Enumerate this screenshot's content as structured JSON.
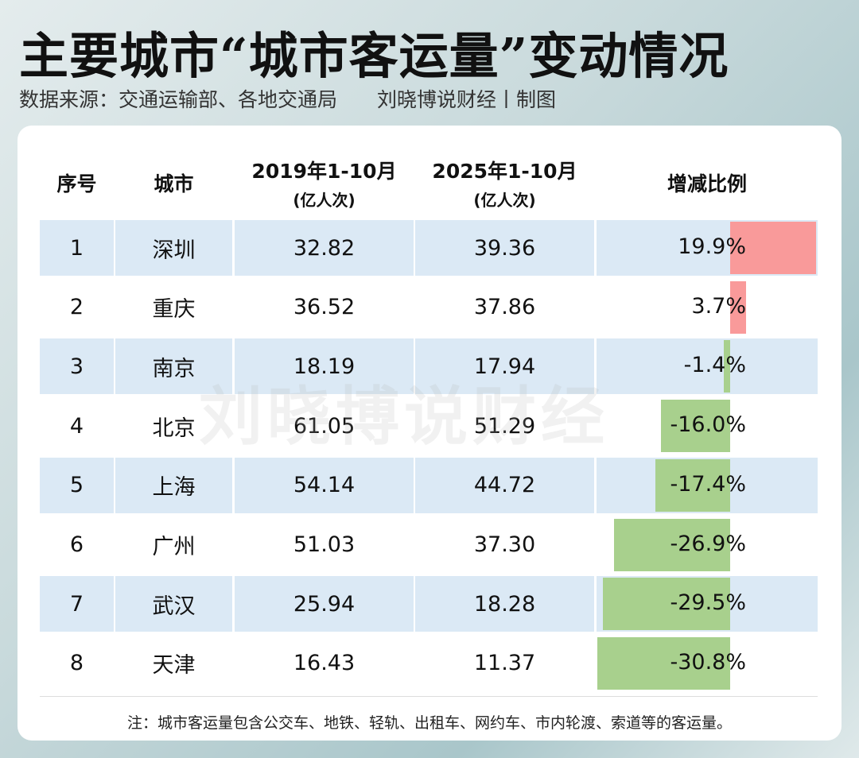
{
  "title": "主要城市“城市客运量”变动情况",
  "source": "数据来源：交通运输部、各地交通局",
  "maker": "刘晓博说财经丨制图",
  "watermark": "刘晓博说财经",
  "colors": {
    "increase": "#f99a9a",
    "decrease": "#a8d08d",
    "row_shade": "#dbe9f5"
  },
  "chart_data": {
    "type": "table",
    "columns": [
      {
        "label": "序号",
        "unit": ""
      },
      {
        "label": "城市",
        "unit": ""
      },
      {
        "label": "2019年1-10月",
        "unit": "(亿人次)"
      },
      {
        "label": "2025年1-10月",
        "unit": "(亿人次)"
      },
      {
        "label": "增减比例",
        "unit": ""
      }
    ],
    "rows": [
      {
        "rank": "1",
        "city": "深圳",
        "y2019": "32.82",
        "y2025": "39.36",
        "change": 19.9,
        "change_label": "19.9%"
      },
      {
        "rank": "2",
        "city": "重庆",
        "y2019": "36.52",
        "y2025": "37.86",
        "change": 3.7,
        "change_label": "3.7%"
      },
      {
        "rank": "3",
        "city": "南京",
        "y2019": "18.19",
        "y2025": "17.94",
        "change": -1.4,
        "change_label": "-1.4%"
      },
      {
        "rank": "4",
        "city": "北京",
        "y2019": "61.05",
        "y2025": "51.29",
        "change": -16.0,
        "change_label": "-16.0%"
      },
      {
        "rank": "5",
        "city": "上海",
        "y2019": "54.14",
        "y2025": "44.72",
        "change": -17.4,
        "change_label": "-17.4%"
      },
      {
        "rank": "6",
        "city": "广州",
        "y2019": "51.03",
        "y2025": "37.30",
        "change": -26.9,
        "change_label": "-26.9%"
      },
      {
        "rank": "7",
        "city": "武汉",
        "y2019": "25.94",
        "y2025": "18.28",
        "change": -29.5,
        "change_label": "-29.5%"
      },
      {
        "rank": "8",
        "city": "天津",
        "y2019": "16.43",
        "y2025": "11.37",
        "change": -30.8,
        "change_label": "-30.8%"
      }
    ]
  },
  "note": "注：城市客运量包含公交车、地铁、轻轨、出租车、网约车、市内轮渡、索道等的客运量。"
}
